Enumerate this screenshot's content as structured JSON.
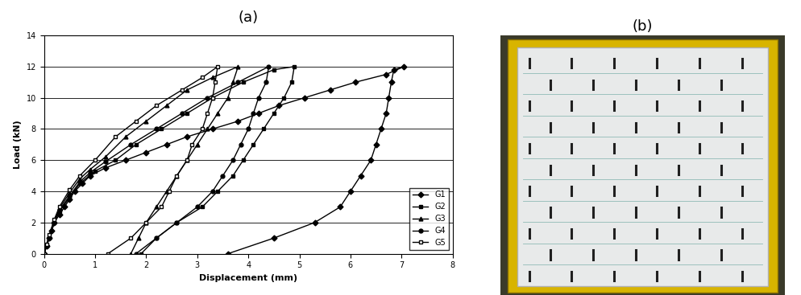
{
  "chart_data": {
    "type": "line",
    "title": "(a)",
    "x_label": "Displacement (mm)",
    "y_label": "Load (kN)",
    "xlim": [
      0,
      8
    ],
    "xticks": [
      0,
      1,
      2,
      3,
      4,
      5,
      6,
      7,
      8
    ],
    "ylim": [
      0,
      14
    ],
    "yticks": [
      0,
      2,
      4,
      6,
      8,
      10,
      12,
      14
    ],
    "grid": true,
    "legend": "lower right",
    "series": [
      {
        "name": "G1",
        "color": "#000000",
        "marker": "diamond",
        "x": [
          0,
          0.05,
          0.1,
          0.15,
          0.2,
          0.3,
          0.4,
          0.5,
          0.6,
          0.75,
          0.9,
          1.2,
          1.6,
          2.0,
          2.4,
          2.8,
          3.3,
          3.8,
          4.2,
          4.6,
          5.1,
          5.6,
          6.1,
          6.7,
          7.05,
          6.85,
          6.8,
          6.75,
          6.7,
          6.6,
          6.5,
          6.4,
          6.2,
          6.0,
          5.8,
          5.3,
          4.5,
          3.6
        ],
        "values": [
          0,
          0.5,
          1,
          1.5,
          2,
          2.5,
          3,
          3.5,
          4,
          4.5,
          5,
          5.5,
          6,
          6.5,
          7,
          7.5,
          8,
          8.5,
          9,
          9.5,
          10,
          10.5,
          11,
          11.5,
          12,
          11.8,
          11,
          10,
          9,
          8,
          7,
          6,
          5,
          4,
          3,
          2,
          1,
          0
        ]
      },
      {
        "name": "G2",
        "color": "#000000",
        "marker": "square",
        "x": [
          0,
          0.05,
          0.1,
          0.2,
          0.3,
          0.5,
          0.7,
          1.0,
          1.4,
          1.8,
          2.3,
          2.8,
          3.3,
          3.9,
          4.5,
          4.9,
          4.85,
          4.7,
          4.5,
          4.3,
          4.1,
          3.9,
          3.7,
          3.4,
          3.1,
          2.6,
          2.2,
          1.9
        ],
        "values": [
          0,
          0.5,
          1,
          2,
          2.7,
          3.6,
          4.5,
          5.3,
          6,
          7,
          8,
          9,
          10,
          11,
          11.8,
          12,
          11,
          10,
          9,
          8,
          7,
          6,
          5,
          4,
          3,
          2,
          1,
          0
        ]
      },
      {
        "name": "G3",
        "color": "#000000",
        "marker": "triangle",
        "x": [
          0,
          0.05,
          0.1,
          0.2,
          0.3,
          0.5,
          0.7,
          0.9,
          1.2,
          1.6,
          2.0,
          2.4,
          2.8,
          3.3,
          3.8,
          3.7,
          3.6,
          3.4,
          3.2,
          3.0,
          2.8,
          2.6,
          2.4,
          2.2,
          2.0,
          1.85,
          1.7
        ],
        "values": [
          0,
          0.6,
          1.1,
          2.1,
          2.9,
          3.9,
          4.8,
          5.4,
          6.2,
          7.5,
          8.5,
          9.5,
          10.5,
          11.3,
          12,
          11,
          10,
          9,
          8,
          7,
          6,
          5,
          4,
          3,
          2,
          1,
          0
        ]
      },
      {
        "name": "G4",
        "color": "#000000",
        "marker": "circle",
        "x": [
          0,
          0.05,
          0.1,
          0.2,
          0.3,
          0.5,
          0.7,
          0.9,
          1.2,
          1.7,
          2.2,
          2.7,
          3.2,
          3.8,
          4.4,
          4.35,
          4.2,
          4.1,
          4.0,
          3.85,
          3.7,
          3.5,
          3.3,
          3.0,
          2.6,
          2.2,
          1.8
        ],
        "values": [
          0,
          0.5,
          1,
          2,
          2.8,
          3.7,
          4.6,
          5.2,
          5.9,
          7,
          8,
          9,
          10,
          11,
          12,
          11,
          10,
          9,
          8,
          7,
          6,
          5,
          4,
          3,
          2,
          1,
          0
        ]
      },
      {
        "name": "G5",
        "color": "#000000",
        "marker": "open_square",
        "x": [
          0,
          0.05,
          0.1,
          0.2,
          0.3,
          0.5,
          0.7,
          1.0,
          1.4,
          1.8,
          2.2,
          2.7,
          3.1,
          3.4,
          3.35,
          3.3,
          3.2,
          3.1,
          2.9,
          2.8,
          2.6,
          2.45,
          2.3,
          2.0,
          1.7,
          1.25
        ],
        "values": [
          0,
          0.6,
          1.2,
          2.2,
          3,
          4.1,
          5,
          6,
          7.5,
          8.5,
          9.5,
          10.5,
          11.3,
          12,
          11,
          10,
          9,
          8,
          7,
          6,
          5,
          4,
          3,
          2,
          1,
          0
        ]
      }
    ]
  },
  "photo": {
    "title": "(b)"
  }
}
